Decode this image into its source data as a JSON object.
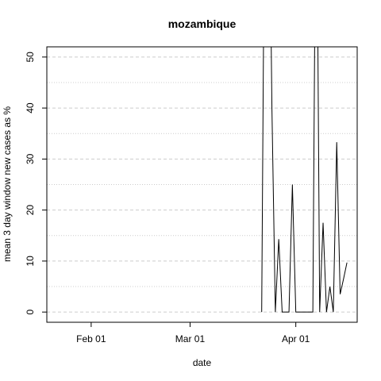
{
  "chart_data": {
    "type": "line",
    "title": "mozambique",
    "xlabel": "date",
    "ylabel": "mean  3  day window new cases as %",
    "x_tick_labels": [
      "Feb 01",
      "Mar 01",
      "Apr 01"
    ],
    "x_tick_dates": [
      "2020-02-01",
      "2020-03-01",
      "2020-04-01"
    ],
    "y_ticks": [
      0,
      10,
      20,
      30,
      40,
      50
    ],
    "ylim": [
      -2,
      52
    ],
    "xlim": [
      "2020-01-19",
      "2020-04-19"
    ],
    "grid": true,
    "legend": "none",
    "line_color": "#000000",
    "series": [
      {
        "x": [
          "2020-03-22",
          "2020-03-23",
          "2020-03-24",
          "2020-03-25",
          "2020-03-26",
          "2020-03-27",
          "2020-03-28",
          "2020-03-29",
          "2020-03-30",
          "2020-03-31",
          "2020-04-01",
          "2020-04-02",
          "2020-04-03",
          "2020-04-04",
          "2020-04-05",
          "2020-04-06",
          "2020-04-07",
          "2020-04-08",
          "2020-04-09",
          "2020-04-10",
          "2020-04-11",
          "2020-04-12",
          "2020-04-13",
          "2020-04-14",
          "2020-04-15",
          "2020-04-16",
          "2020-04-17"
        ],
        "values": [
          0,
          100,
          100,
          40,
          0,
          14.3,
          0,
          0,
          0,
          25,
          0,
          0,
          0,
          0,
          0,
          0,
          100,
          0,
          17.5,
          0,
          5,
          0,
          33.3,
          3.5,
          6.5,
          9.7,
          null
        ]
      }
    ]
  }
}
